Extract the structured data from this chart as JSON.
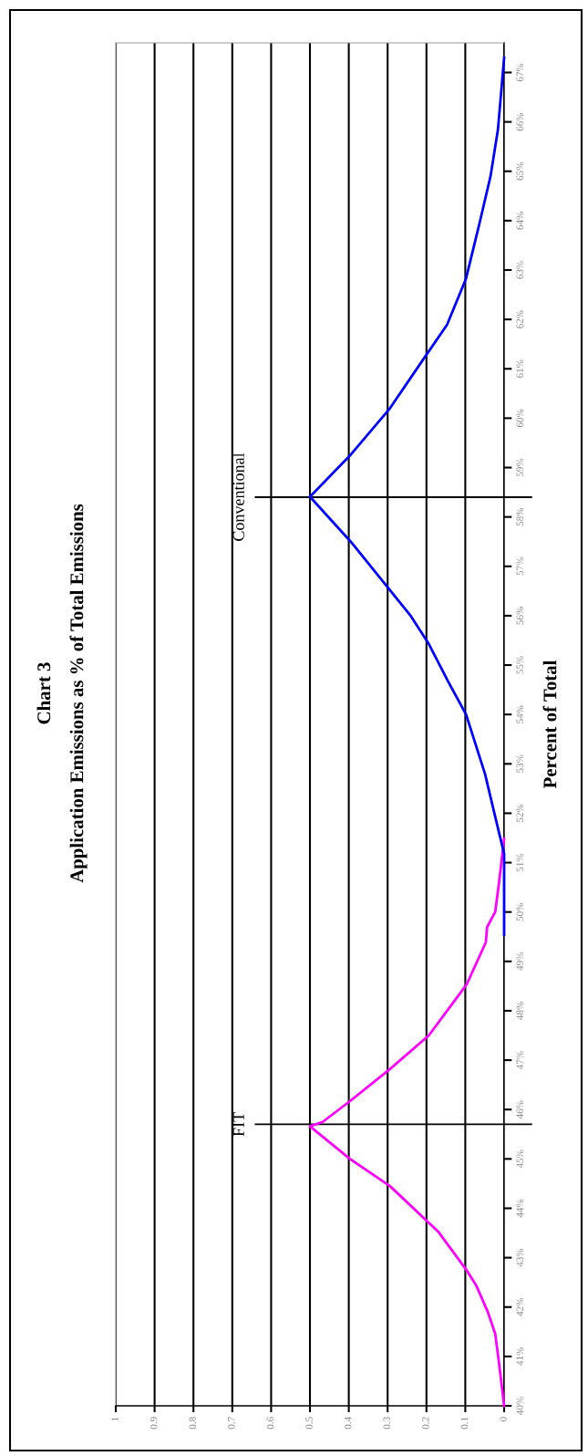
{
  "chart_data": {
    "type": "line",
    "title": "Chart 3",
    "subtitle": "Application Emissions as % of Total Emissions",
    "ylabel": "Percent of Total",
    "ylim": [
      40,
      67.6
    ],
    "yticks": [
      {
        "value": 40,
        "label": "40%"
      },
      {
        "value": 41,
        "label": "41%"
      },
      {
        "value": 42,
        "label": "42%"
      },
      {
        "value": 43,
        "label": "43%"
      },
      {
        "value": 44,
        "label": "44%"
      },
      {
        "value": 45,
        "label": "45%"
      },
      {
        "value": 46,
        "label": "46%"
      },
      {
        "value": 47,
        "label": "47%"
      },
      {
        "value": 48,
        "label": "48%"
      },
      {
        "value": 49,
        "label": "49%"
      },
      {
        "value": 50,
        "label": "50%"
      },
      {
        "value": 51,
        "label": "51%"
      },
      {
        "value": 52,
        "label": "52%"
      },
      {
        "value": 53,
        "label": "53%"
      },
      {
        "value": 54,
        "label": "54%"
      },
      {
        "value": 55,
        "label": "55%"
      },
      {
        "value": 56,
        "label": "56%"
      },
      {
        "value": 57,
        "label": "57%"
      },
      {
        "value": 58,
        "label": "58%"
      },
      {
        "value": 59,
        "label": "59%"
      },
      {
        "value": 60,
        "label": "60%"
      },
      {
        "value": 61,
        "label": "61%"
      },
      {
        "value": 62,
        "label": "62%"
      },
      {
        "value": 63,
        "label": "63%"
      },
      {
        "value": 64,
        "label": "64%"
      },
      {
        "value": 65,
        "label": "65%"
      },
      {
        "value": 66,
        "label": "66%"
      },
      {
        "value": 67,
        "label": "67%"
      }
    ],
    "xlim": [
      1,
      0
    ],
    "xticks": [
      0,
      0.1,
      0.2,
      0.3,
      0.4,
      0.5,
      0.6,
      0.7,
      0.8,
      0.9,
      1
    ],
    "grid": "x",
    "series": [
      {
        "color": "#ff00ff",
        "values": [
          40,
          40.92,
          41.46,
          41.9,
          42.44,
          42.74,
          43.53,
          44.45,
          45.0,
          45.66,
          45.75,
          46.17,
          46.82,
          47.5,
          48.54,
          49.39,
          49.69,
          50.0,
          50.54,
          51.48
        ],
        "x": [
          0,
          0.014,
          0.023,
          0.042,
          0.072,
          0.096,
          0.17,
          0.294,
          0.397,
          0.5,
          0.467,
          0.397,
          0.294,
          0.194,
          0.096,
          0.047,
          0.044,
          0.023,
          0.014,
          0
        ]
      },
      {
        "color": "#0000ff",
        "values": [
          49.54,
          51.18,
          52.03,
          52.79,
          54.0,
          54.68,
          55.43,
          55.99,
          56.52,
          57.5,
          58.41,
          59.26,
          60.2,
          61.09,
          61.89,
          62.83,
          63.96,
          64.9,
          65.84,
          67.3
        ],
        "x": [
          0,
          0,
          0.026,
          0.049,
          0.098,
          0.145,
          0.194,
          0.24,
          0.294,
          0.395,
          0.5,
          0.395,
          0.294,
          0.217,
          0.147,
          0.098,
          0.063,
          0.035,
          0.016,
          0
        ]
      }
    ],
    "ref_lines": [
      {
        "axis": "y",
        "value": 45.7,
        "label": "FIT",
        "color": "#000000"
      },
      {
        "axis": "y",
        "value": 58.4,
        "label": "Conventional",
        "color": "#000000"
      }
    ]
  }
}
